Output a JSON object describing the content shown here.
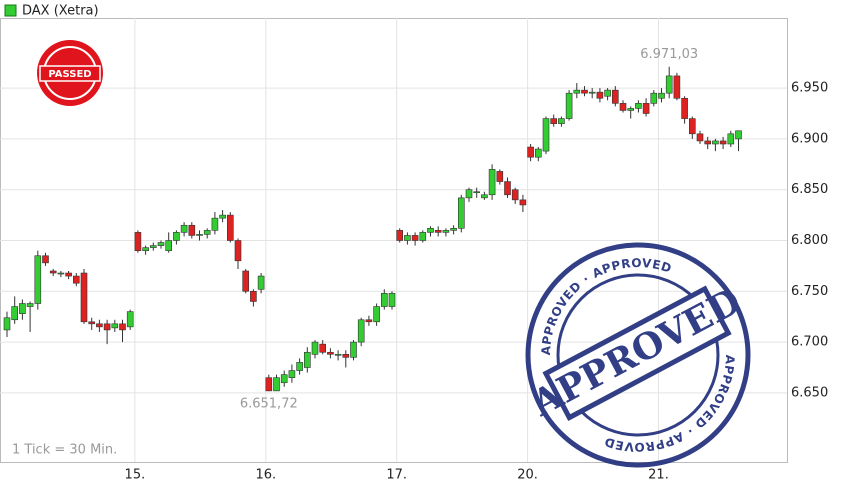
{
  "chart_data": {
    "type": "candlestick",
    "series": [
      {
        "name": "DAX (Xetra)",
        "color": "#33cc33",
        "down_color": "#dd2222",
        "open": [
          6712,
          6722,
          6728,
          6735,
          6738,
          6785,
          6770,
          6768,
          6768,
          6765,
          6768,
          6720,
          6718,
          6718,
          6714,
          6718,
          6715,
          6808,
          6790,
          6793,
          6795,
          6790,
          6800,
          6808,
          6815,
          6805,
          6806,
          6810,
          6822,
          6825,
          6800,
          6770,
          6750,
          6752,
          6665,
          6652,
          6660,
          6665,
          6672,
          6675,
          6688,
          6698,
          6690,
          6688,
          6688,
          6685,
          6700,
          6722,
          6720,
          6735,
          6735,
          6810,
          6800,
          6805,
          6800,
          6808,
          6810,
          6808,
          6810,
          6812,
          6842,
          6848,
          6842,
          6845,
          6868,
          6858,
          6850,
          6840,
          6892,
          6882,
          6888,
          6920,
          6915,
          6920,
          6945,
          6948,
          6945,
          6946,
          6942,
          6948,
          6935,
          6928,
          6930,
          6935,
          6935,
          6940,
          6945,
          6962,
          6940,
          6920,
          6905,
          6898,
          6895,
          6898,
          6895,
          6900
        ],
        "high": [
          6730,
          6745,
          6742,
          6740,
          6790,
          6788,
          6772,
          6770,
          6770,
          6768,
          6772,
          6724,
          6722,
          6722,
          6722,
          6722,
          6732,
          6810,
          6795,
          6798,
          6800,
          6808,
          6810,
          6818,
          6818,
          6810,
          6812,
          6828,
          6830,
          6828,
          6802,
          6772,
          6752,
          6768,
          6668,
          6668,
          6672,
          6678,
          6684,
          6695,
          6702,
          6702,
          6694,
          6692,
          6692,
          6702,
          6724,
          6726,
          6738,
          6752,
          6750,
          6812,
          6808,
          6808,
          6810,
          6814,
          6814,
          6812,
          6815,
          6845,
          6852,
          6852,
          6848,
          6875,
          6870,
          6862,
          6852,
          6845,
          6895,
          6892,
          6922,
          6924,
          6922,
          6948,
          6955,
          6952,
          6950,
          6950,
          6950,
          6952,
          6938,
          6932,
          6938,
          6940,
          6948,
          6950,
          6971.03,
          6965,
          6942,
          6922,
          6908,
          6902,
          6900,
          6902,
          6908,
          6908
        ],
        "low": [
          6705,
          6718,
          6722,
          6710,
          6732,
          6775,
          6765,
          6764,
          6762,
          6755,
          6718,
          6712,
          6710,
          6698,
          6710,
          6700,
          6712,
          6788,
          6786,
          6790,
          6792,
          6788,
          6796,
          6804,
          6802,
          6800,
          6802,
          6806,
          6818,
          6798,
          6772,
          6748,
          6735,
          6748,
          6651.72,
          6653,
          6656,
          6660,
          6668,
          6670,
          6684,
          6688,
          6684,
          6682,
          6675,
          6682,
          6696,
          6716,
          6716,
          6732,
          6732,
          6798,
          6796,
          6795,
          6798,
          6804,
          6804,
          6804,
          6806,
          6808,
          6838,
          6842,
          6840,
          6840,
          6855,
          6842,
          6836,
          6828,
          6878,
          6878,
          6885,
          6912,
          6912,
          6918,
          6940,
          6942,
          6940,
          6936,
          6938,
          6932,
          6926,
          6920,
          6926,
          6922,
          6932,
          6936,
          6940,
          6938,
          6915,
          6900,
          6895,
          6890,
          6888,
          6890,
          6892,
          6888
        ],
        "close": [
          6724,
          6735,
          6738,
          6738,
          6785,
          6778,
          6768,
          6768,
          6765,
          6758,
          6720,
          6718,
          6715,
          6712,
          6718,
          6712,
          6730,
          6790,
          6793,
          6795,
          6798,
          6800,
          6808,
          6815,
          6805,
          6806,
          6810,
          6822,
          6825,
          6800,
          6780,
          6750,
          6740,
          6765,
          6652,
          6665,
          6668,
          6672,
          6680,
          6690,
          6700,
          6690,
          6688,
          6688,
          6685,
          6700,
          6722,
          6720,
          6735,
          6748,
          6748,
          6800,
          6805,
          6800,
          6808,
          6812,
          6808,
          6810,
          6812,
          6842,
          6850,
          6848,
          6845,
          6870,
          6858,
          6845,
          6840,
          6835,
          6882,
          6890,
          6920,
          6915,
          6920,
          6945,
          6948,
          6945,
          6946,
          6940,
          6948,
          6935,
          6928,
          6930,
          6935,
          6925,
          6945,
          6945,
          6962,
          6940,
          6920,
          6905,
          6898,
          6895,
          6898,
          6895,
          6905,
          6908
        ]
      }
    ],
    "categories": [
      null,
      null,
      null,
      null,
      null,
      null,
      null,
      null,
      null,
      null,
      null,
      null,
      null,
      null,
      null,
      null,
      null,
      "15.",
      null,
      null,
      null,
      null,
      null,
      null,
      null,
      null,
      null,
      null,
      null,
      null,
      null,
      null,
      null,
      null,
      "16.",
      null,
      null,
      null,
      null,
      null,
      null,
      null,
      null,
      null,
      null,
      null,
      null,
      null,
      null,
      null,
      null,
      "17.",
      null,
      null,
      null,
      null,
      null,
      null,
      null,
      null,
      null,
      null,
      null,
      null,
      null,
      null,
      null,
      null,
      "20.",
      null,
      null,
      null,
      null,
      null,
      null,
      null,
      null,
      null,
      null,
      null,
      null,
      null,
      null,
      null,
      null,
      "21.",
      null,
      null,
      null,
      null,
      null,
      null,
      null,
      null,
      null,
      null
    ],
    "ylim": [
      6582,
      7019
    ],
    "yticks": [
      {
        "value": 6650,
        "label": "6.650"
      },
      {
        "value": 6700,
        "label": "6.700"
      },
      {
        "value": 6750,
        "label": "6.750"
      },
      {
        "value": 6800,
        "label": "6.800"
      },
      {
        "value": 6850,
        "label": "6.850"
      },
      {
        "value": 6900,
        "label": "6.900"
      },
      {
        "value": 6950,
        "label": "6.950"
      }
    ],
    "grid": true,
    "annotations": [
      {
        "value": 6971.03,
        "label": "6.971,03"
      },
      {
        "value": 6651.72,
        "label": "6.651,72"
      }
    ],
    "footnote": "1 Tick = 30 Min.",
    "stamps": [
      {
        "text": "PASSED"
      },
      {
        "text": "APPROVED",
        "ring_text": "APPROVED · APPROVED"
      }
    ]
  }
}
